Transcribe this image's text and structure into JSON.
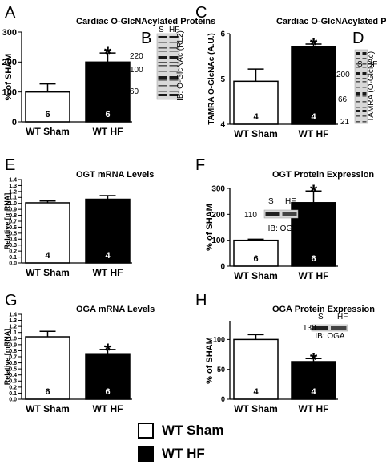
{
  "colors": {
    "sham": "#ffffff",
    "hf": "#000000",
    "stroke": "#000000"
  },
  "legend": {
    "sham_label": "WT Sham",
    "hf_label": "WT HF"
  },
  "chart_data": [
    {
      "type": "bar",
      "panel": "A",
      "title": "Cardiac O-GlcNAcylated Proteins",
      "ylabel": "% of SHAM",
      "xlabel": "",
      "ylim": [
        0,
        300
      ],
      "yticks": [
        0,
        100,
        200,
        300
      ],
      "categories": [
        "WT Sham",
        "WT HF"
      ],
      "values": [
        100,
        200
      ],
      "errors": [
        27,
        30
      ],
      "n": [
        "6",
        "6"
      ],
      "significance": [
        "",
        "*"
      ],
      "blot": {
        "letter": "B",
        "lanes": [
          "S",
          "HF"
        ],
        "markers": [
          "220",
          "100",
          "60"
        ],
        "ib": "IB: O-GlcNAc (RL2)"
      }
    },
    {
      "type": "bar",
      "panel": "C",
      "title": "Cardiac O-GlcNAcylated Proteins",
      "ylabel": "TAMRA O-GlcNAc (A.U.)",
      "xlabel": "",
      "ylim": [
        4,
        6
      ],
      "yticks": [
        4,
        5,
        6
      ],
      "categories": [
        "WT Sham",
        "WT HF"
      ],
      "values": [
        4.95,
        5.72
      ],
      "errors": [
        0.27,
        0.05
      ],
      "n": [
        "4",
        "4"
      ],
      "significance": [
        "",
        "*"
      ],
      "blot": {
        "letter": "D",
        "lanes": [
          "S",
          "HF"
        ],
        "markers": [
          "200",
          "66",
          "21"
        ],
        "ib": "TAMRA (O-GlcNAc)"
      }
    },
    {
      "type": "bar",
      "panel": "E",
      "title": "OGT mRNA Levels",
      "ylabel": "Relative [mRNA]",
      "xlabel": "",
      "ylim": [
        0,
        1.4
      ],
      "yticks": [
        0,
        0.1,
        0.2,
        0.3,
        0.4,
        0.5,
        0.6,
        0.7,
        0.8,
        0.9,
        1.0,
        1.1,
        1.2,
        1.3,
        1.4
      ],
      "ytick_labels": [
        "0.0",
        "0.1",
        "0.2",
        "0.3",
        "0.4",
        "0.5",
        "0.6",
        "0.7",
        "0.8",
        "0.9",
        "1.0",
        "1.1",
        "1.2",
        "1.3",
        "1.4"
      ],
      "categories": [
        "WT Sham",
        "WT HF"
      ],
      "values": [
        1.01,
        1.07
      ],
      "errors": [
        0.03,
        0.06
      ],
      "n": [
        "4",
        "4"
      ],
      "significance": [
        "",
        ""
      ]
    },
    {
      "type": "bar",
      "panel": "F",
      "title": "OGT Protein Expression",
      "ylabel": "% of SHAM",
      "xlabel": "",
      "ylim": [
        0,
        300
      ],
      "yticks": [
        0,
        100,
        200,
        300
      ],
      "categories": [
        "WT Sham",
        "WT HF"
      ],
      "values": [
        100,
        245
      ],
      "errors": [
        4,
        45
      ],
      "n": [
        "6",
        "6"
      ],
      "significance": [
        "",
        "*"
      ],
      "blot": {
        "lanes": [
          "S",
          "HF"
        ],
        "markers": [
          "110"
        ],
        "ib": "IB: OGT"
      }
    },
    {
      "type": "bar",
      "panel": "G",
      "title": "OGA mRNA Levels",
      "ylabel": "Relative [mRNA]",
      "xlabel": "",
      "ylim": [
        0,
        1.4
      ],
      "yticks": [
        0,
        0.1,
        0.2,
        0.3,
        0.4,
        0.5,
        0.6,
        0.7,
        0.8,
        0.9,
        1.0,
        1.1,
        1.2,
        1.3,
        1.4
      ],
      "ytick_labels": [
        "0.0",
        "0.1",
        "0.2",
        "0.3",
        "0.4",
        "0.5",
        "0.6",
        "0.7",
        "0.8",
        "0.9",
        "1.0",
        "1.1",
        "1.2",
        "1.3",
        "1.4"
      ],
      "categories": [
        "WT Sham",
        "WT HF"
      ],
      "values": [
        1.03,
        0.75
      ],
      "errors": [
        0.09,
        0.07
      ],
      "n": [
        "6",
        "6"
      ],
      "significance": [
        "",
        "*"
      ]
    },
    {
      "type": "bar",
      "panel": "H",
      "title": "OGA Protein Expression",
      "ylabel": "% of SHAM",
      "xlabel": "",
      "ylim": [
        0,
        130
      ],
      "yticks": [
        0,
        50,
        100
      ],
      "categories": [
        "WT Sham",
        "WT HF"
      ],
      "values": [
        100,
        63
      ],
      "errors": [
        8,
        5
      ],
      "n": [
        "4",
        "4"
      ],
      "significance": [
        "",
        "*"
      ],
      "blot": {
        "lanes": [
          "S",
          "HF"
        ],
        "markers": [
          "130"
        ],
        "ib": "IB: OGA"
      }
    }
  ]
}
